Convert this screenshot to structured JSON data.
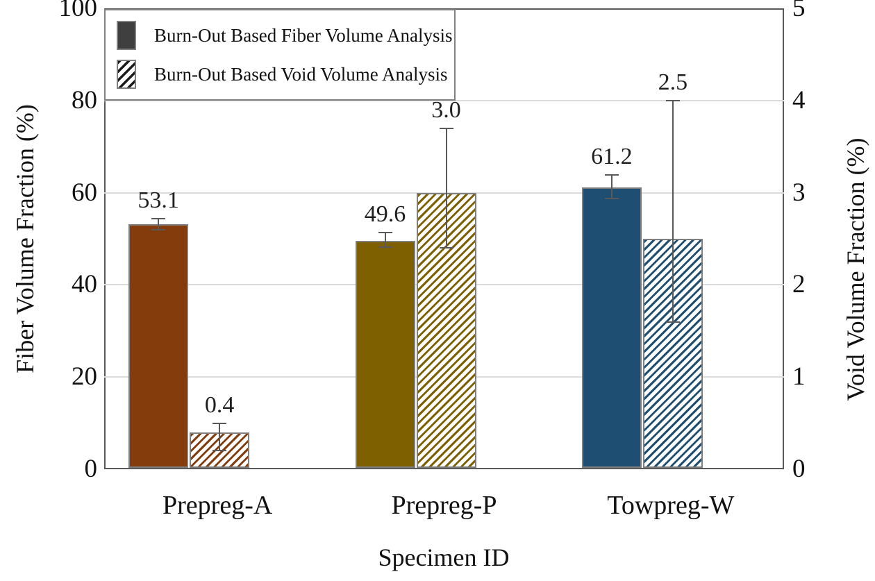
{
  "chart_data": {
    "type": "bar",
    "xlabel": "Specimen ID",
    "categories": [
      "Prepreg-A",
      "Prepreg-P",
      "Towpreg-W"
    ],
    "left_axis": {
      "label": "Fiber Volume Fraction (%)",
      "min": 0,
      "max": 100,
      "ticks": [
        0,
        20,
        40,
        60,
        80,
        100
      ]
    },
    "right_axis": {
      "label": "Void Volume Fraction (%)",
      "min": 0,
      "max": 5,
      "ticks": [
        0,
        1,
        2,
        3,
        4,
        5
      ]
    },
    "grid": "horizontal-on",
    "legend_position": "top-left-inside",
    "series": [
      {
        "name": "Burn-Out Based Fiber Volume Analysis",
        "axis": "left",
        "pattern": "solid",
        "values": [
          53.1,
          49.6,
          61.2
        ],
        "data_labels": [
          "53.1",
          "49.6",
          "61.2"
        ],
        "error_hi": [
          54.3,
          51.4,
          63.8
        ],
        "error_lo": [
          52.0,
          48.2,
          58.8
        ],
        "bar_colors": [
          "#843C0C",
          "#7F6000",
          "#1F4E73"
        ]
      },
      {
        "name": "Burn-Out Based Void Volume Analysis",
        "axis": "right",
        "pattern": "hatched",
        "values": [
          0.4,
          3.0,
          2.5
        ],
        "data_labels": [
          "0.4",
          "3.0",
          "2.5"
        ],
        "error_hi": [
          0.5,
          3.7,
          4.0
        ],
        "error_lo": [
          0.2,
          2.4,
          1.6
        ],
        "bar_colors": [
          "#843C0C",
          "#7F6000",
          "#1F4E73"
        ]
      }
    ],
    "colors": {
      "error_bar": "#595959",
      "gridline": "#DCDCDC",
      "frame": "#595959",
      "bar_border": "#7F7F7F",
      "legend_solid_swatch": "#3F3F3F",
      "legend_hatch_stripe": "#1a1a1a"
    }
  }
}
